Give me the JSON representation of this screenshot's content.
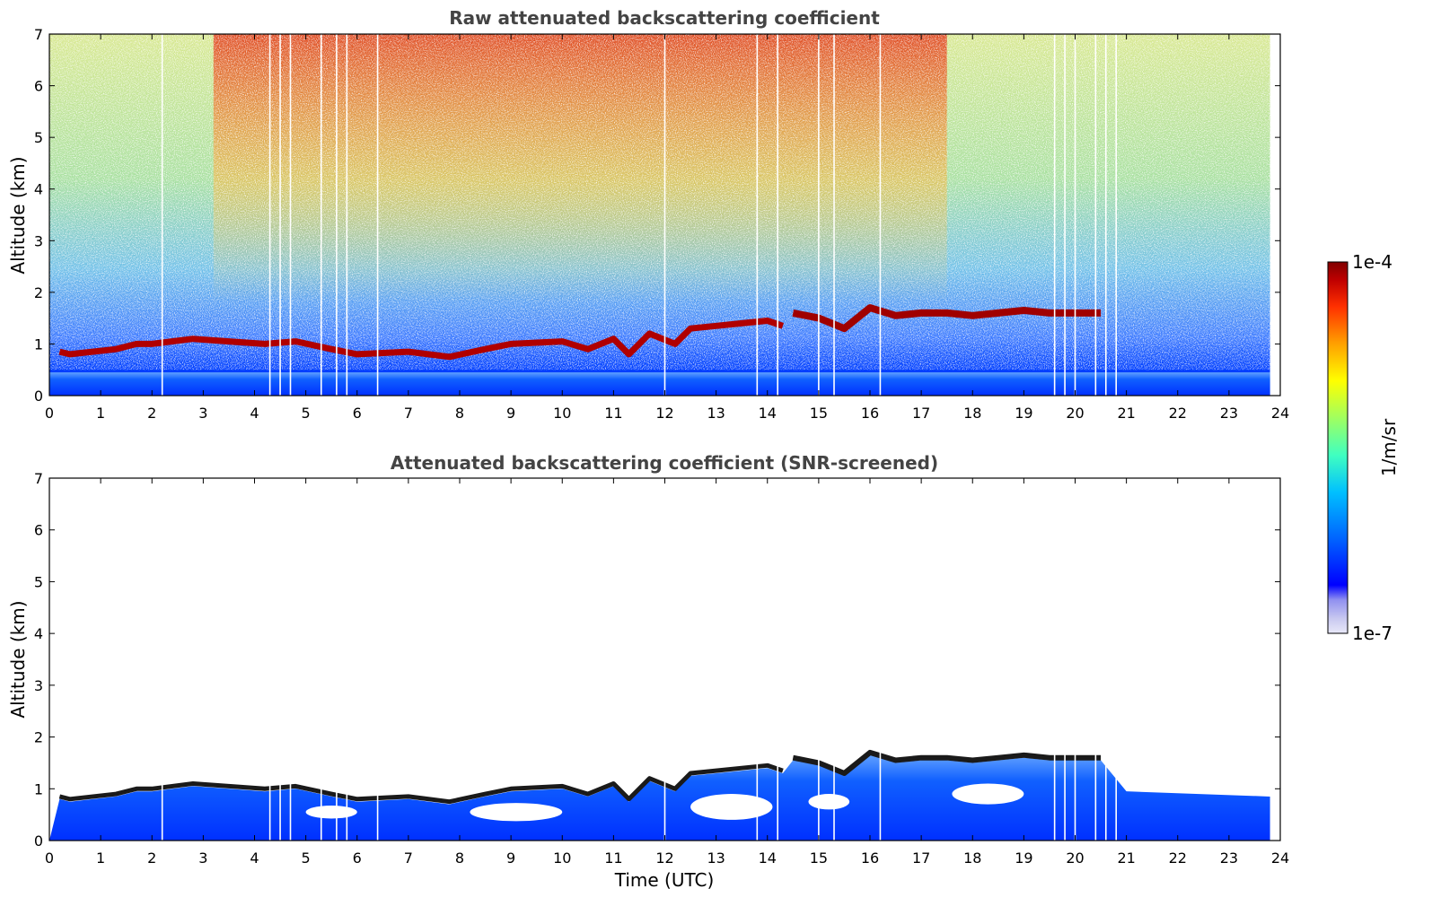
{
  "chart_data": [
    {
      "type": "heatmap",
      "title": "Raw attenuated backscattering coefficient",
      "xlabel": "",
      "ylabel": "Altitude (km)",
      "xlim": [
        0,
        24
      ],
      "ylim": [
        0,
        7
      ],
      "x_ticks": [
        "0",
        "1",
        "2",
        "3",
        "4",
        "5",
        "6",
        "7",
        "8",
        "9",
        "10",
        "11",
        "12",
        "13",
        "14",
        "15",
        "16",
        "17",
        "18",
        "19",
        "20",
        "21",
        "22",
        "23",
        "24"
      ],
      "y_ticks": [
        "0",
        "1",
        "2",
        "3",
        "4",
        "5",
        "6",
        "7"
      ],
      "data_end_time": 23.8,
      "boundary_layer_top": {
        "time": [
          0.2,
          0.4,
          1.3,
          1.7,
          2.0,
          2.8,
          3.5,
          4.2,
          4.8,
          5.5,
          6.0,
          7.0,
          7.8,
          8.5,
          9.0,
          10.0,
          10.5,
          11.0,
          11.3,
          11.7,
          12.2,
          12.5,
          13.0,
          13.5,
          14.0,
          14.3
        ],
        "altitude": [
          0.85,
          0.8,
          0.9,
          1.0,
          1.0,
          1.1,
          1.05,
          1.0,
          1.05,
          0.9,
          0.8,
          0.85,
          0.75,
          0.9,
          1.0,
          1.05,
          0.9,
          1.1,
          0.8,
          1.2,
          1.0,
          1.3,
          1.35,
          1.4,
          1.45,
          1.35
        ]
      },
      "cloud_layer": {
        "time": [
          14.5,
          15.0,
          15.5,
          16.0,
          16.5,
          17.0,
          17.5,
          18.0,
          18.5,
          19.0,
          19.5,
          20.0,
          20.5
        ],
        "altitude": [
          1.6,
          1.5,
          1.3,
          1.7,
          1.55,
          1.6,
          1.6,
          1.55,
          1.6,
          1.65,
          1.6,
          1.6,
          1.6
        ]
      },
      "gaps_time": [
        2.2,
        4.3,
        4.5,
        4.7,
        5.3,
        5.6,
        5.8,
        6.4,
        12.0,
        13.8,
        14.2,
        15.0,
        15.3,
        16.2,
        19.6,
        19.8,
        20.0,
        20.4,
        20.6,
        20.8
      ]
    },
    {
      "type": "heatmap",
      "title": "Attenuated backscattering coefficient (SNR-screened)",
      "xlabel": "Time (UTC)",
      "ylabel": "Altitude (km)",
      "xlim": [
        0,
        24
      ],
      "ylim": [
        0,
        7
      ],
      "x_ticks": [
        "0",
        "1",
        "2",
        "3",
        "4",
        "5",
        "6",
        "7",
        "8",
        "9",
        "10",
        "11",
        "12",
        "13",
        "14",
        "15",
        "16",
        "17",
        "18",
        "19",
        "20",
        "21",
        "22",
        "23",
        "24"
      ],
      "y_ticks": [
        "0",
        "1",
        "2",
        "3",
        "4",
        "5",
        "6",
        "7"
      ],
      "data_end_time": 23.8
    }
  ],
  "colorbar": {
    "label": "1/m/sr",
    "max_label": "1e-4",
    "min_label": "1e-7",
    "colors": [
      "#e8e8f8",
      "#c8c8f0",
      "#9090f0",
      "#0000ff",
      "#0060ff",
      "#00c0ff",
      "#40ffc0",
      "#a0ff60",
      "#ffff00",
      "#ffa000",
      "#ff3000",
      "#c00000",
      "#800000"
    ]
  }
}
